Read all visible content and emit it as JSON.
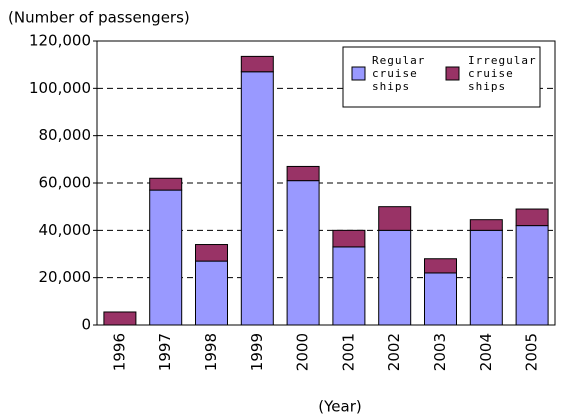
{
  "chart_data": {
    "type": "stacked_bar",
    "y_label": "(Number of passengers)",
    "x_label": "(Year)",
    "categories": [
      "1996",
      "1997",
      "1998",
      "1999",
      "2000",
      "2001",
      "2002",
      "2003",
      "2004",
      "2005"
    ],
    "series": [
      {
        "name": "Regular cruise ships",
        "color": "#9999ff",
        "values": [
          0,
          57000,
          27000,
          107000,
          61000,
          33000,
          40000,
          22000,
          40000,
          42000
        ]
      },
      {
        "name": "Irregular cruise ships",
        "color": "#993366",
        "values": [
          5500,
          5000,
          7000,
          6500,
          6000,
          7000,
          10000,
          6000,
          4500,
          7000
        ]
      }
    ],
    "ylim": [
      0,
      120000
    ],
    "yticks": [
      0,
      {
        "value": 20000,
        "label": "20,000"
      },
      {
        "value": 40000,
        "label": "40,000"
      },
      {
        "value": 60000,
        "label": "60,000"
      },
      {
        "value": 80000,
        "label": "80,000"
      },
      {
        "value": 100000,
        "label": "100,000"
      },
      {
        "value": 120000,
        "label": "120,000"
      }
    ],
    "grid": true
  }
}
